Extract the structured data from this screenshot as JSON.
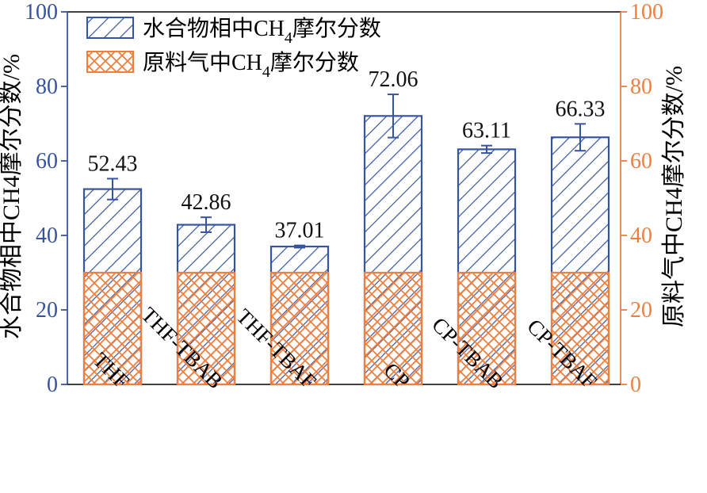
{
  "chart_data": {
    "type": "bar",
    "categories": [
      "THF",
      "THF-TBAB",
      "THF-TBAF",
      "CP",
      "CP-TBAB",
      "CP-TBAF"
    ],
    "series": [
      {
        "name": "水合物相中CH4摩尔分数",
        "values": [
          52.43,
          42.86,
          37.01,
          72.06,
          63.11,
          66.33
        ],
        "error": [
          2.8,
          2.0,
          0.3,
          5.8,
          1.0,
          3.6
        ],
        "labels": [
          "52.43",
          "42.86",
          "37.01",
          "72.06",
          "63.11",
          "66.33"
        ],
        "color": "#3654a0"
      },
      {
        "name": "原料气中CH4摩尔分数",
        "values": [
          30,
          30,
          30,
          30,
          30,
          30
        ],
        "color": "#ef7f3f"
      }
    ],
    "ylim": [
      0,
      100
    ],
    "yticks": [
      "0",
      "20",
      "40",
      "60",
      "80",
      "100"
    ],
    "ylabel_left": "水合物相中CH4摩尔分数/%",
    "ylabel_right": "原料气中CH4摩尔分数/%",
    "legend": {
      "items": [
        {
          "label_prefix": "水合物相中CH",
          "label_sub": "4",
          "label_suffix": "摩尔分数"
        },
        {
          "label_prefix": "原料气中CH",
          "label_sub": "4",
          "label_suffix": "摩尔分数"
        }
      ],
      "placement": "top-left"
    },
    "grid": false
  }
}
